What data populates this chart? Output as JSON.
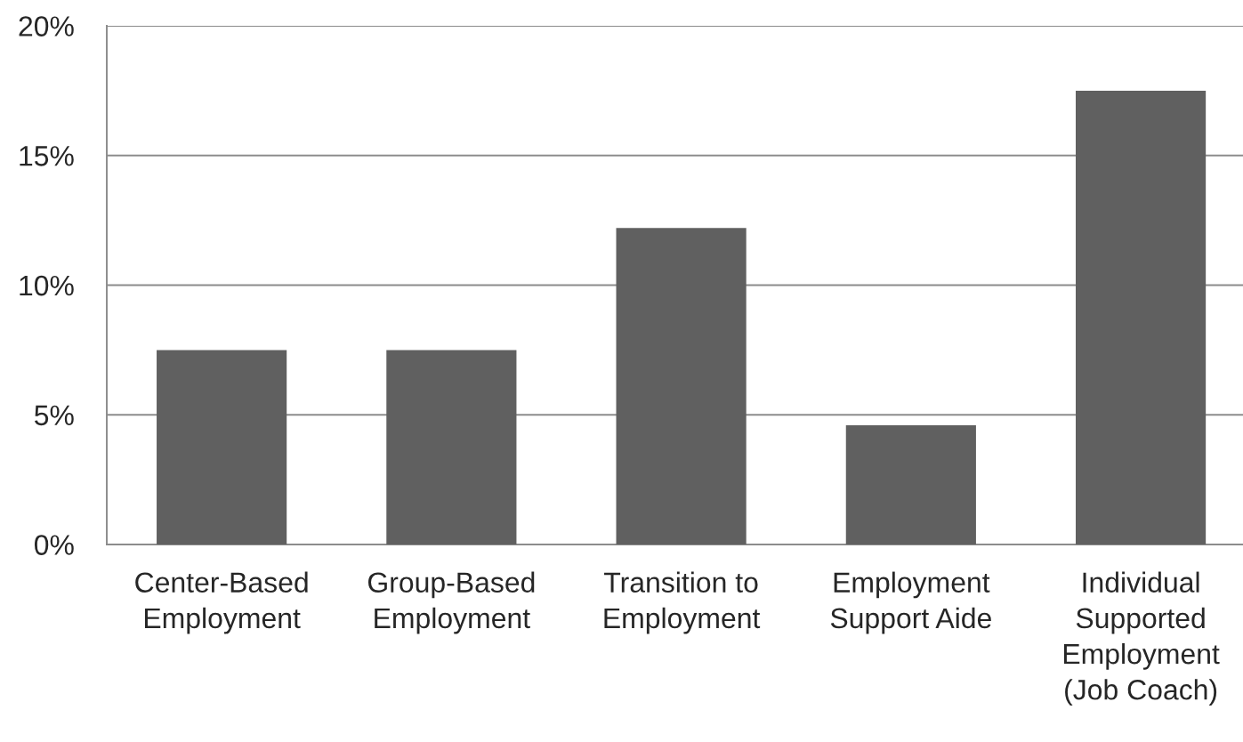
{
  "chart_data": {
    "type": "bar",
    "categories": [
      "Center-Based\nEmployment",
      "Group-Based\nEmployment",
      "Transition to\nEmployment",
      "Employment\nSupport Aide",
      "Individual\nSupported\nEmployment\n(Job Coach)"
    ],
    "values": [
      7.5,
      7.5,
      12.2,
      4.6,
      17.5
    ],
    "color": "#606060",
    "ylim": [
      0,
      20
    ],
    "yticks": [
      {
        "value": 0,
        "label": "0%"
      },
      {
        "value": 5,
        "label": "5%"
      },
      {
        "value": 10,
        "label": "10%"
      },
      {
        "value": 15,
        "label": "15%"
      },
      {
        "value": 20,
        "label": "20%"
      }
    ],
    "grid": "y"
  }
}
